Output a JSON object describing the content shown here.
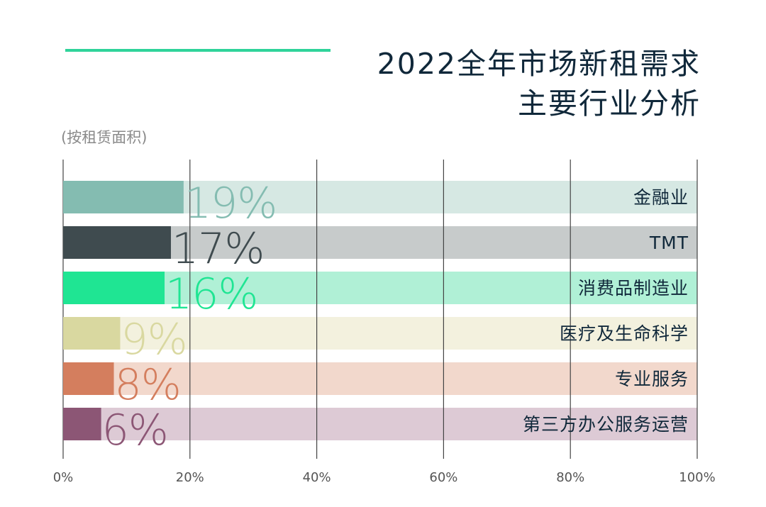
{
  "colors": {
    "accent": "#2fd39a",
    "title": "#10283a",
    "subtitle": "#8a8a8a",
    "axis_text": "#555555",
    "gridline": "#444444"
  },
  "header": {
    "title_line1": "2022全年市场新租需求",
    "title_line2": "主要行业分析",
    "subtitle": "(按租赁面积)"
  },
  "chart_data": {
    "type": "bar",
    "orientation": "horizontal",
    "title": "2022全年市场新租需求主要行业分析",
    "subtitle": "(按租赁面积)",
    "xlim": [
      0,
      100
    ],
    "x_ticks": [
      0,
      20,
      40,
      60,
      80,
      100
    ],
    "x_tick_labels": [
      "0%",
      "20%",
      "40%",
      "60%",
      "80%",
      "100%"
    ],
    "grid": true,
    "categories": [
      "金融业",
      "TMT",
      "消费品制造业",
      "医疗及生命科学",
      "专业服务",
      "第三方办公服务运营"
    ],
    "values": [
      19,
      17,
      16,
      9,
      8,
      6
    ],
    "value_labels": [
      "19%",
      "17%",
      "16%",
      "9%",
      "8%",
      "6%"
    ],
    "bar_colors": [
      "#84bcb1",
      "#3f4b4f",
      "#1fe593",
      "#d9d8a0",
      "#d47e5e",
      "#8c5675"
    ],
    "track_colors": [
      "#d6e8e3",
      "#c7cbcb",
      "#b0f0d6",
      "#f3f1de",
      "#f2d8cc",
      "#ddcad5"
    ],
    "label_colors": [
      "#84bcb1",
      "#3f4b4f",
      "#1fe593",
      "#d9d8a0",
      "#d47e5e",
      "#8c5675"
    ]
  }
}
